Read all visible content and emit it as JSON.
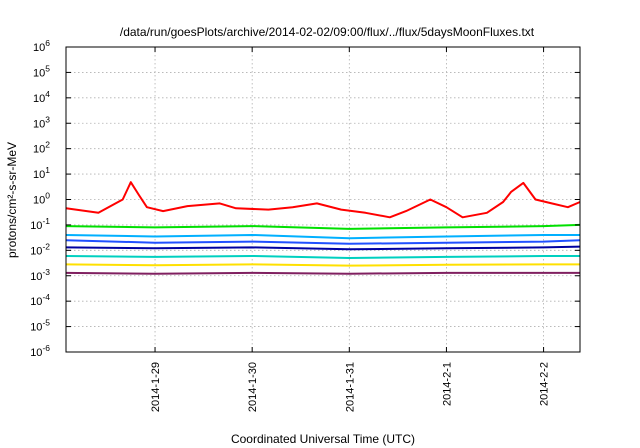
{
  "chart_data": {
    "type": "line",
    "title": "/data/run/goesPlots/archive/2014-02-02/09:00/flux/../flux/5daysMoonFluxes.txt",
    "xlabel": "Coordinated Universal Time (UTC)",
    "ylabel": "protons/cm²-s-sr-MeV",
    "yscale": "log",
    "ylim": [
      1e-06,
      1000000.0
    ],
    "xlim": [
      "2014-01-28 02:00",
      "2014-02-02 09:00"
    ],
    "x_ticks": [
      {
        "label": "2014-1-29",
        "t": "2014-01-29"
      },
      {
        "label": "2014-1-30",
        "t": "2014-01-30"
      },
      {
        "label": "2014-1-31",
        "t": "2014-01-31"
      },
      {
        "label": "2014-2-1",
        "t": "2014-02-01"
      },
      {
        "label": "2014-2-2",
        "t": "2014-02-02"
      }
    ],
    "y_ticks": [
      {
        "base": "10",
        "exp": "-6",
        "v": 1e-06
      },
      {
        "base": "10",
        "exp": "-5",
        "v": 1e-05
      },
      {
        "base": "10",
        "exp": "-4",
        "v": 0.0001
      },
      {
        "base": "10",
        "exp": "-3",
        "v": 0.001
      },
      {
        "base": "10",
        "exp": "-2",
        "v": 0.01
      },
      {
        "base": "10",
        "exp": "-1",
        "v": 0.1
      },
      {
        "base": "10",
        "exp": "0",
        "v": 1
      },
      {
        "base": "10",
        "exp": "1",
        "v": 10
      },
      {
        "base": "10",
        "exp": "2",
        "v": 100
      },
      {
        "base": "10",
        "exp": "3",
        "v": 1000
      },
      {
        "base": "10",
        "exp": "4",
        "v": 10000
      },
      {
        "base": "10",
        "exp": "5",
        "v": 100000
      },
      {
        "base": "10",
        "exp": "6",
        "v": 1000000
      }
    ],
    "grid": true,
    "series": [
      {
        "color": "#ff0000",
        "x": [
          "2014-01-28 02:00",
          "2014-01-28 10:00",
          "2014-01-28 16:00",
          "2014-01-28 18:00",
          "2014-01-28 20:00",
          "2014-01-28 22:00",
          "2014-01-29 02:00",
          "2014-01-29 08:00",
          "2014-01-29 16:00",
          "2014-01-29 20:00",
          "2014-01-30 04:00",
          "2014-01-30 10:00",
          "2014-01-30 16:00",
          "2014-01-30 22:00",
          "2014-01-31 04:00",
          "2014-01-31 10:00",
          "2014-01-31 14:00",
          "2014-01-31 20:00",
          "2014-02-01 00:00",
          "2014-02-01 04:00",
          "2014-02-01 10:00",
          "2014-02-01 14:00",
          "2014-02-01 16:00",
          "2014-02-01 19:00",
          "2014-02-01 22:00",
          "2014-02-02 02:00",
          "2014-02-02 06:00",
          "2014-02-02 09:00"
        ],
        "values": [
          0.45,
          0.3,
          1.0,
          4.8,
          1.5,
          0.5,
          0.35,
          0.55,
          0.7,
          0.45,
          0.4,
          0.5,
          0.7,
          0.4,
          0.3,
          0.2,
          0.35,
          1.0,
          0.5,
          0.2,
          0.3,
          0.8,
          2.0,
          4.5,
          1.0,
          0.7,
          0.5,
          0.8
        ]
      },
      {
        "color": "#00e000",
        "x": [
          "2014-01-28 02:00",
          "2014-01-29 00:00",
          "2014-01-30 00:00",
          "2014-01-31 00:00",
          "2014-02-01 00:00",
          "2014-02-02 00:00",
          "2014-02-02 09:00"
        ],
        "values": [
          0.09,
          0.08,
          0.09,
          0.07,
          0.08,
          0.09,
          0.1
        ]
      },
      {
        "color": "#00b0ff",
        "x": [
          "2014-01-28 02:00",
          "2014-01-29 00:00",
          "2014-01-30 00:00",
          "2014-01-31 00:00",
          "2014-02-01 00:00",
          "2014-02-02 00:00",
          "2014-02-02 09:00"
        ],
        "values": [
          0.04,
          0.035,
          0.04,
          0.03,
          0.035,
          0.04,
          0.04
        ]
      },
      {
        "color": "#2050ff",
        "x": [
          "2014-01-28 02:00",
          "2014-01-29 00:00",
          "2014-01-30 00:00",
          "2014-01-31 00:00",
          "2014-02-01 00:00",
          "2014-02-02 00:00",
          "2014-02-02 09:00"
        ],
        "values": [
          0.025,
          0.02,
          0.022,
          0.018,
          0.02,
          0.022,
          0.025
        ]
      },
      {
        "color": "#0000a0",
        "x": [
          "2014-01-28 02:00",
          "2014-01-29 00:00",
          "2014-01-30 00:00",
          "2014-01-31 00:00",
          "2014-02-01 00:00",
          "2014-02-02 00:00",
          "2014-02-02 09:00"
        ],
        "values": [
          0.013,
          0.012,
          0.013,
          0.011,
          0.012,
          0.013,
          0.014
        ]
      },
      {
        "color": "#00d0c0",
        "x": [
          "2014-01-28 02:00",
          "2014-01-29 00:00",
          "2014-01-30 00:00",
          "2014-01-31 00:00",
          "2014-02-01 00:00",
          "2014-02-02 00:00",
          "2014-02-02 09:00"
        ],
        "values": [
          0.006,
          0.0055,
          0.006,
          0.005,
          0.0055,
          0.006,
          0.006
        ]
      },
      {
        "color": "#ffe000",
        "x": [
          "2014-01-28 02:00",
          "2014-01-29 00:00",
          "2014-01-30 00:00",
          "2014-01-31 00:00",
          "2014-02-01 00:00",
          "2014-02-02 00:00",
          "2014-02-02 09:00"
        ],
        "values": [
          0.0028,
          0.0026,
          0.0028,
          0.0025,
          0.0027,
          0.0028,
          0.0028
        ]
      },
      {
        "color": "#802060",
        "x": [
          "2014-01-28 02:00",
          "2014-01-29 00:00",
          "2014-01-30 00:00",
          "2014-01-31 00:00",
          "2014-02-01 00:00",
          "2014-02-02 00:00",
          "2014-02-02 09:00"
        ],
        "values": [
          0.0013,
          0.0012,
          0.0013,
          0.0012,
          0.0013,
          0.0013,
          0.0013
        ]
      }
    ]
  }
}
